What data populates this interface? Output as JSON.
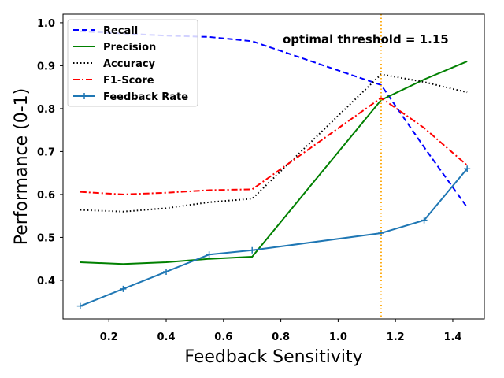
{
  "chart_data": {
    "type": "line",
    "xlabel": "Feedback Sensitivity",
    "ylabel": "Performance (0-1)",
    "xlim": [
      0.04,
      1.51
    ],
    "ylim": [
      0.31,
      1.02
    ],
    "xticks": [
      0.2,
      0.4,
      0.6,
      0.8,
      1.0,
      1.2,
      1.4
    ],
    "xtick_labels": [
      "0.2",
      "0.4",
      "0.6",
      "0.8",
      "1.0",
      "1.2",
      "1.4"
    ],
    "yticks": [
      0.4,
      0.5,
      0.6,
      0.7,
      0.8,
      0.9,
      1.0
    ],
    "ytick_labels": [
      "0.4",
      "0.5",
      "0.6",
      "0.7",
      "0.8",
      "0.9",
      "1.0"
    ],
    "grid": false,
    "legend_position": "top-left",
    "series": [
      {
        "name": "Recall",
        "color": "#0000ff",
        "style": "dashed",
        "marker": "none",
        "x": [
          0.1,
          0.25,
          0.4,
          0.55,
          0.7,
          1.15,
          1.3,
          1.45
        ],
        "y": [
          0.98,
          0.975,
          0.97,
          0.967,
          0.957,
          0.855,
          0.71,
          0.57
        ]
      },
      {
        "name": "Precision",
        "color": "#008000",
        "style": "solid",
        "marker": "none",
        "x": [
          0.1,
          0.25,
          0.4,
          0.55,
          0.7,
          1.15,
          1.3,
          1.45
        ],
        "y": [
          0.442,
          0.438,
          0.442,
          0.45,
          0.455,
          0.82,
          0.868,
          0.91
        ]
      },
      {
        "name": "Accuracy",
        "color": "#000000",
        "style": "dotted",
        "marker": "none",
        "x": [
          0.1,
          0.25,
          0.4,
          0.55,
          0.7,
          1.15,
          1.3,
          1.45
        ],
        "y": [
          0.564,
          0.56,
          0.568,
          0.582,
          0.59,
          0.88,
          0.862,
          0.838
        ]
      },
      {
        "name": "F1-Score",
        "color": "#ff0000",
        "style": "dashdot",
        "marker": "none",
        "x": [
          0.1,
          0.25,
          0.4,
          0.55,
          0.7,
          1.15,
          1.3,
          1.45
        ],
        "y": [
          0.606,
          0.6,
          0.604,
          0.61,
          0.612,
          0.825,
          0.755,
          0.668
        ]
      },
      {
        "name": "Feedback Rate",
        "color": "#1f77b4",
        "style": "solid",
        "marker": "plus",
        "x": [
          0.1,
          0.25,
          0.4,
          0.55,
          0.7,
          1.15,
          1.3,
          1.45
        ],
        "y": [
          0.34,
          0.38,
          0.42,
          0.46,
          0.47,
          0.51,
          0.54,
          0.66
        ]
      }
    ],
    "annotations": [
      {
        "type": "vline",
        "x": 1.15,
        "color": "#ffa500",
        "style": "dotted"
      },
      {
        "type": "text",
        "text": "optimal threshold = 1.15"
      }
    ]
  }
}
